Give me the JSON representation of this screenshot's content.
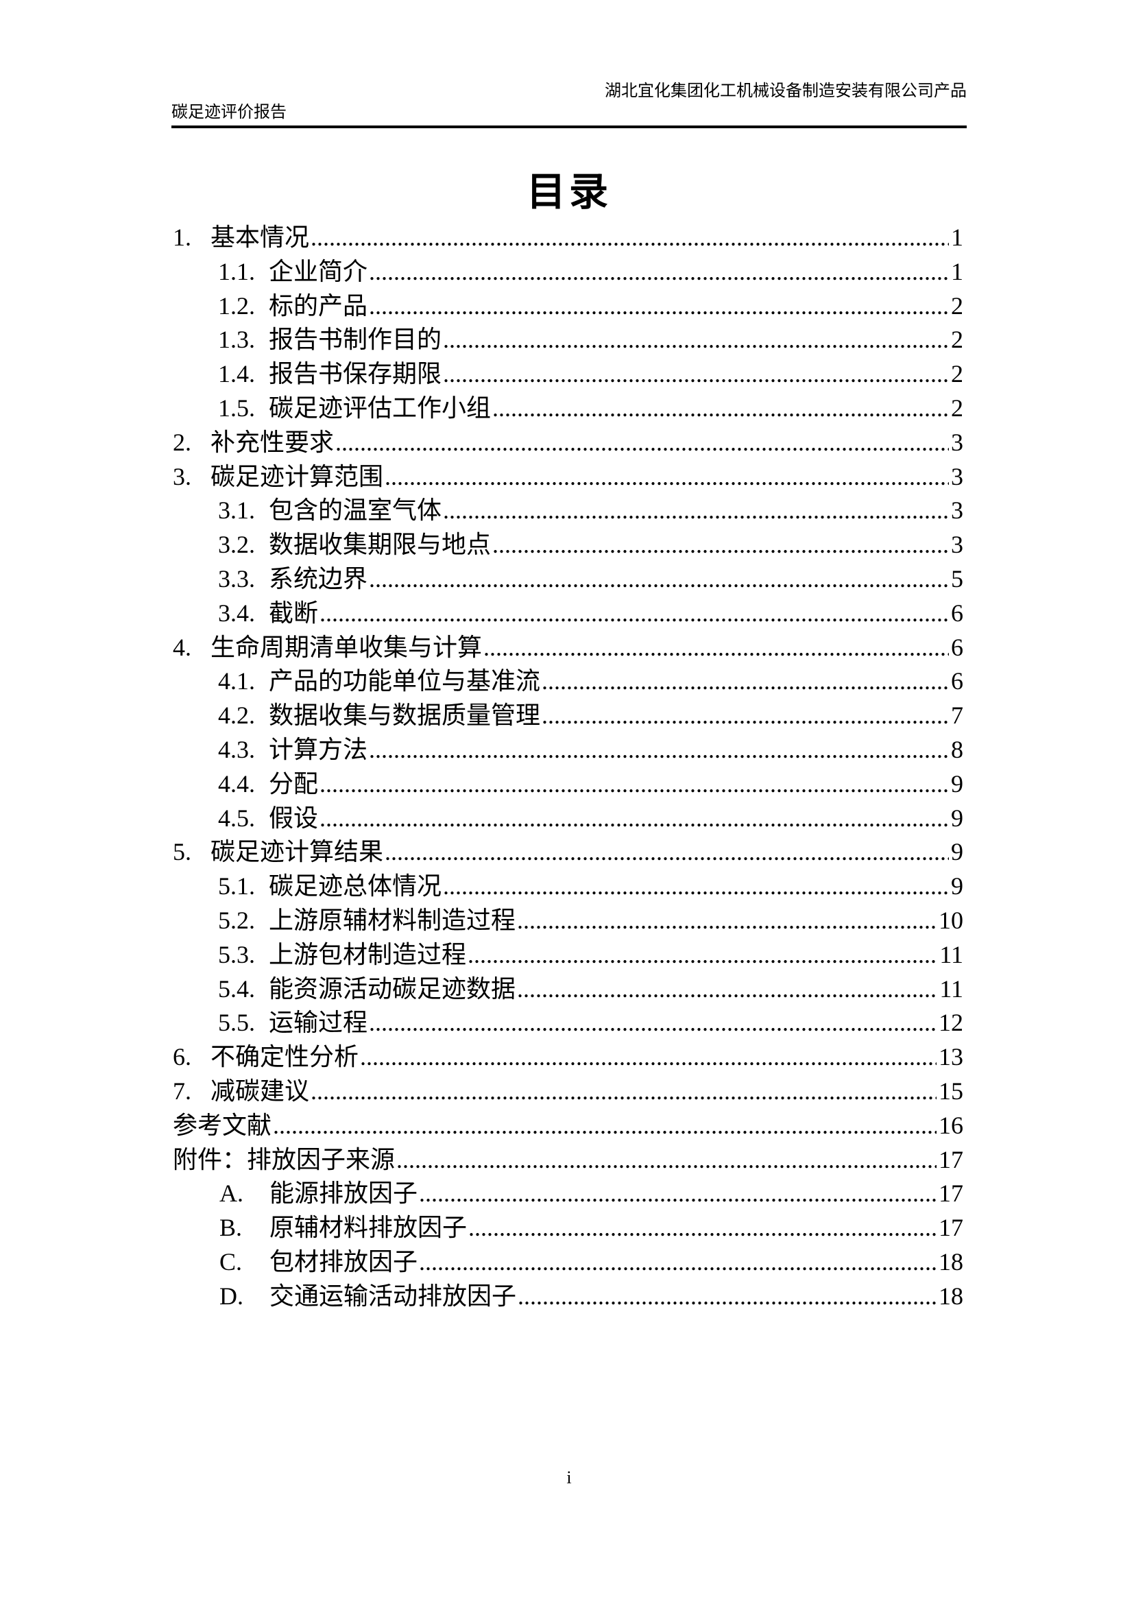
{
  "header": {
    "line1": "湖北宜化集团化工机械设备制造安装有限公司产品",
    "line2": "碳足迹评价报告"
  },
  "title": "目录",
  "toc": {
    "items": [
      {
        "kind": "section",
        "num": "1.",
        "label": "基本情况",
        "page": "1"
      },
      {
        "kind": "subsection",
        "num": "1.1.",
        "label": "企业简介",
        "page": "1"
      },
      {
        "kind": "subsection",
        "num": "1.2.",
        "label": "标的产品",
        "page": "2"
      },
      {
        "kind": "subsection",
        "num": "1.3.",
        "label": "报告书制作目的",
        "page": "2"
      },
      {
        "kind": "subsection",
        "num": "1.4.",
        "label": "报告书保存期限",
        "page": "2"
      },
      {
        "kind": "subsection",
        "num": "1.5.",
        "label": "碳足迹评估工作小组",
        "page": "2"
      },
      {
        "kind": "section",
        "num": "2.",
        "label": "补充性要求",
        "page": "3"
      },
      {
        "kind": "section",
        "num": "3.",
        "label": "碳足迹计算范围",
        "page": "3"
      },
      {
        "kind": "subsection",
        "num": "3.1.",
        "label": "包含的温室气体",
        "page": "3"
      },
      {
        "kind": "subsection",
        "num": "3.2.",
        "label": "数据收集期限与地点",
        "page": "3"
      },
      {
        "kind": "subsection",
        "num": "3.3.",
        "label": "系统边界",
        "page": "5"
      },
      {
        "kind": "subsection",
        "num": "3.4.",
        "label": "截断",
        "page": "6"
      },
      {
        "kind": "section",
        "num": "4.",
        "label": "生命周期清单收集与计算",
        "page": "6"
      },
      {
        "kind": "subsection",
        "num": "4.1.",
        "label": "产品的功能单位与基准流",
        "page": "6"
      },
      {
        "kind": "subsection",
        "num": "4.2.",
        "label": "数据收集与数据质量管理",
        "page": "7"
      },
      {
        "kind": "subsection",
        "num": "4.3.",
        "label": "计算方法",
        "page": "8"
      },
      {
        "kind": "subsection",
        "num": "4.4.",
        "label": "分配",
        "page": "9"
      },
      {
        "kind": "subsection",
        "num": "4.5.",
        "label": "假设",
        "page": "9"
      },
      {
        "kind": "section",
        "num": "5.",
        "label": "碳足迹计算结果",
        "page": "9"
      },
      {
        "kind": "subsection",
        "num": "5.1.",
        "label": "碳足迹总体情况",
        "page": "9"
      },
      {
        "kind": "subsection",
        "num": "5.2.",
        "label": "上游原辅材料制造过程",
        "page": "10"
      },
      {
        "kind": "subsection",
        "num": "5.3.",
        "label": "上游包材制造过程",
        "page": "11"
      },
      {
        "kind": "subsection",
        "num": "5.4.",
        "label": "能资源活动碳足迹数据",
        "page": "11"
      },
      {
        "kind": "subsection",
        "num": "5.5.",
        "label": "运输过程",
        "page": "12"
      },
      {
        "kind": "section",
        "num": "6.",
        "label": "不确定性分析",
        "page": "13"
      },
      {
        "kind": "section",
        "num": "7.",
        "label": "减碳建议",
        "page": "15"
      },
      {
        "kind": "unnumbered",
        "num": "",
        "label": "参考文献",
        "page": "16"
      },
      {
        "kind": "unnumbered",
        "num": "",
        "label": "附件：排放因子来源",
        "page": "17"
      },
      {
        "kind": "appendix",
        "num": "A.",
        "label": "能源排放因子",
        "page": "17"
      },
      {
        "kind": "appendix",
        "num": "B.",
        "label": "原辅材料排放因子",
        "page": "17"
      },
      {
        "kind": "appendix",
        "num": "C.",
        "label": "包材排放因子",
        "page": "18"
      },
      {
        "kind": "appendix",
        "num": "D.",
        "label": "交通运输活动排放因子",
        "page": "18"
      }
    ]
  },
  "footer": {
    "page_number": "i"
  }
}
